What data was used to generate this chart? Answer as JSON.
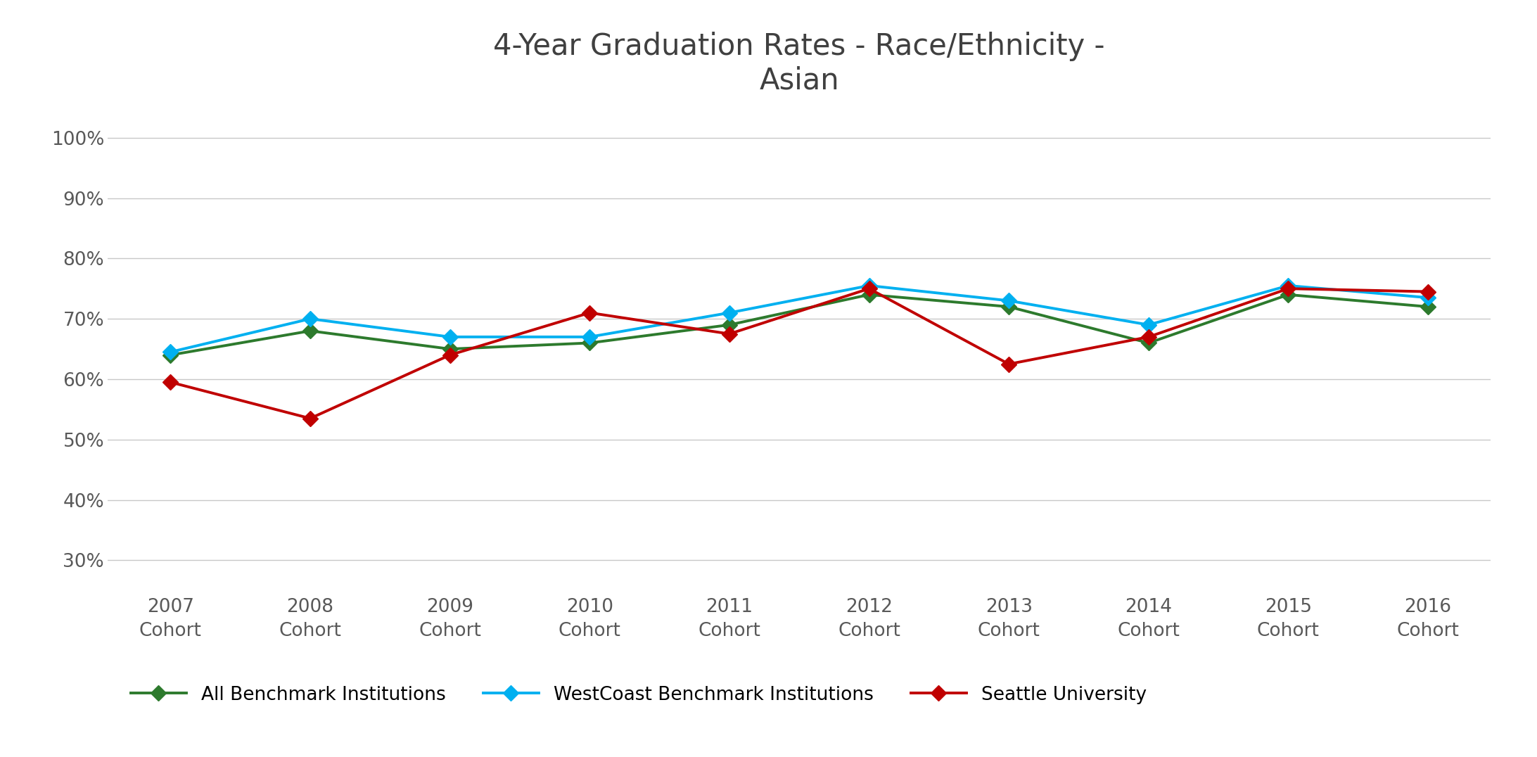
{
  "title": "4-Year Graduation Rates - Race/Ethnicity -\nAsian",
  "categories": [
    "2007\nCohort",
    "2008\nCohort",
    "2009\nCohort",
    "2010\nCohort",
    "2011\nCohort",
    "2012\nCohort",
    "2013\nCohort",
    "2014\nCohort",
    "2015\nCohort",
    "2016\nCohort"
  ],
  "all_benchmark": [
    0.64,
    0.68,
    0.65,
    0.66,
    0.69,
    0.74,
    0.72,
    0.66,
    0.74,
    0.72
  ],
  "westcoast_benchmark": [
    0.645,
    0.7,
    0.67,
    0.67,
    0.71,
    0.755,
    0.73,
    0.69,
    0.755,
    0.735
  ],
  "seattle_university": [
    0.595,
    0.535,
    0.64,
    0.71,
    0.675,
    0.75,
    0.625,
    0.67,
    0.75,
    0.745
  ],
  "all_benchmark_color": "#2d7a2d",
  "westcoast_color": "#00b0f0",
  "seattle_color": "#c00000",
  "ylim": [
    0.25,
    1.04
  ],
  "yticks": [
    0.3,
    0.4,
    0.5,
    0.6,
    0.7,
    0.8,
    0.9,
    1.0
  ],
  "title_fontsize": 30,
  "tick_fontsize": 19,
  "legend_fontsize": 19,
  "line_width": 2.8,
  "marker_size": 11,
  "background_color": "#ffffff",
  "grid_color": "#c8c8c8"
}
